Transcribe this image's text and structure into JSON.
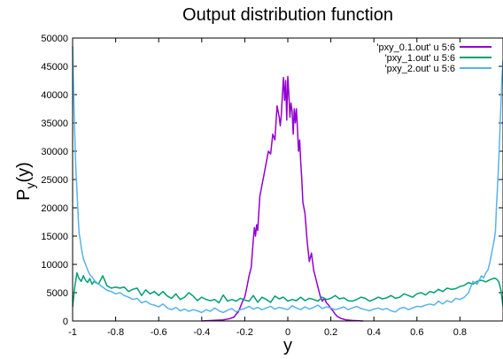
{
  "chart_data": {
    "type": "line",
    "title": "Output distribution function",
    "xlabel": "y",
    "ylabel_main": "P",
    "ylabel_sub": "y",
    "ylabel_tail": "(y)",
    "xlim": [
      -1,
      1
    ],
    "ylim": [
      0,
      50000
    ],
    "xticks": [
      -1,
      -0.8,
      -0.6,
      -0.4,
      -0.2,
      0,
      0.2,
      0.4,
      0.6,
      0.8
    ],
    "xtick_labels": [
      "-1",
      "-0.8",
      "-0.6",
      "-0.4",
      "-0.2",
      "0",
      "0.2",
      "0.4",
      "0.6",
      "0.8"
    ],
    "yticks": [
      0,
      5000,
      10000,
      15000,
      20000,
      25000,
      30000,
      35000,
      40000,
      45000,
      50000
    ],
    "ytick_labels": [
      "0",
      "5000",
      "10000",
      "15000",
      "20000",
      "25000",
      "30000",
      "35000",
      "40000",
      "45000",
      "50000"
    ],
    "grid": false,
    "legend_position": "top-right",
    "series": [
      {
        "name": "'pxy_0.1.out' u 5:6",
        "color": "#9400D3",
        "x": [
          -0.4,
          -0.35,
          -0.3,
          -0.27,
          -0.25,
          -0.24,
          -0.23,
          -0.22,
          -0.21,
          -0.2,
          -0.19,
          -0.18,
          -0.17,
          -0.16,
          -0.155,
          -0.15,
          -0.145,
          -0.14,
          -0.13,
          -0.12,
          -0.11,
          -0.1,
          -0.09,
          -0.08,
          -0.07,
          -0.06,
          -0.05,
          -0.045,
          -0.04,
          -0.035,
          -0.03,
          -0.025,
          -0.02,
          -0.015,
          -0.01,
          -0.005,
          0,
          0.005,
          0.01,
          0.015,
          0.02,
          0.025,
          0.03,
          0.035,
          0.04,
          0.045,
          0.05,
          0.055,
          0.06,
          0.065,
          0.07,
          0.08,
          0.09,
          0.1,
          0.11,
          0.12,
          0.13,
          0.14,
          0.15,
          0.16,
          0.17,
          0.18,
          0.19,
          0.2,
          0.21,
          0.22,
          0.23,
          0.24,
          0.25,
          0.27,
          0.3,
          0.33,
          0.35
        ],
        "y": [
          0,
          100,
          200,
          400,
          700,
          1200,
          1600,
          2500,
          3500,
          4200,
          6000,
          8000,
          9500,
          14500,
          16500,
          15000,
          17000,
          16000,
          22000,
          24000,
          26000,
          28000,
          30000,
          29500,
          33000,
          32000,
          38000,
          37000,
          36000,
          34500,
          36500,
          40000,
          43000,
          39000,
          42500,
          35500,
          43200,
          40000,
          36000,
          38500,
          37000,
          33000,
          37500,
          35000,
          37500,
          34000,
          30000,
          32000,
          28000,
          25000,
          21000,
          19000,
          14000,
          10500,
          12000,
          9000,
          7500,
          6000,
          4500,
          3500,
          4000,
          3200,
          2800,
          2200,
          1800,
          1200,
          800,
          600,
          400,
          200,
          100,
          50,
          0
        ]
      },
      {
        "name": "'pxy_1.out' u 5:6",
        "color": "#009E73",
        "x": [
          -1.0,
          -0.99,
          -0.98,
          -0.97,
          -0.96,
          -0.95,
          -0.94,
          -0.93,
          -0.92,
          -0.91,
          -0.9,
          -0.88,
          -0.86,
          -0.84,
          -0.82,
          -0.8,
          -0.78,
          -0.76,
          -0.74,
          -0.72,
          -0.7,
          -0.68,
          -0.66,
          -0.64,
          -0.62,
          -0.6,
          -0.58,
          -0.56,
          -0.54,
          -0.52,
          -0.5,
          -0.48,
          -0.46,
          -0.44,
          -0.42,
          -0.4,
          -0.38,
          -0.36,
          -0.34,
          -0.32,
          -0.3,
          -0.28,
          -0.26,
          -0.24,
          -0.22,
          -0.2,
          -0.18,
          -0.16,
          -0.14,
          -0.12,
          -0.1,
          -0.08,
          -0.06,
          -0.04,
          -0.02,
          0,
          0.02,
          0.04,
          0.06,
          0.08,
          0.1,
          0.12,
          0.14,
          0.16,
          0.18,
          0.2,
          0.22,
          0.24,
          0.26,
          0.28,
          0.3,
          0.32,
          0.34,
          0.36,
          0.38,
          0.4,
          0.42,
          0.44,
          0.46,
          0.48,
          0.5,
          0.52,
          0.54,
          0.56,
          0.58,
          0.6,
          0.62,
          0.64,
          0.66,
          0.68,
          0.7,
          0.72,
          0.74,
          0.76,
          0.78,
          0.8,
          0.82,
          0.84,
          0.86,
          0.88,
          0.9,
          0.92,
          0.94,
          0.96,
          0.97,
          0.98,
          0.99,
          1.0
        ],
        "y": [
          2500,
          6000,
          8500,
          7500,
          7000,
          8000,
          7200,
          6800,
          7500,
          6500,
          7000,
          6500,
          8000,
          6200,
          5800,
          6000,
          5800,
          6000,
          5200,
          5600,
          5800,
          4500,
          5500,
          4800,
          5200,
          4500,
          5200,
          4400,
          4000,
          4800,
          3800,
          4200,
          5000,
          4400,
          3600,
          4200,
          3800,
          3600,
          3800,
          3200,
          4600,
          3500,
          3800,
          3500,
          4000,
          3700,
          3500,
          4500,
          3300,
          4200,
          3800,
          3300,
          4400,
          3900,
          4200,
          3500,
          3800,
          3600,
          4200,
          3600,
          4000,
          3800,
          3500,
          4200,
          3800,
          4000,
          4500,
          3900,
          4100,
          3600,
          3500,
          3800,
          4200,
          4000,
          3500,
          3800,
          4200,
          3900,
          4100,
          4500,
          4000,
          4200,
          4800,
          4500,
          4200,
          4800,
          5000,
          4600,
          5200,
          5000,
          5600,
          5200,
          5800,
          5600,
          5700,
          6100,
          6300,
          6800,
          6500,
          7000,
          7200,
          6900,
          7300,
          7600,
          7400,
          7000,
          5500,
          2600
        ]
      },
      {
        "name": "'pxy_2.out' u 5:6",
        "color": "#56B4E9",
        "x": [
          -1.0,
          -0.995,
          -0.99,
          -0.985,
          -0.98,
          -0.975,
          -0.97,
          -0.965,
          -0.96,
          -0.955,
          -0.95,
          -0.94,
          -0.93,
          -0.92,
          -0.91,
          -0.9,
          -0.88,
          -0.86,
          -0.84,
          -0.82,
          -0.8,
          -0.78,
          -0.76,
          -0.74,
          -0.72,
          -0.7,
          -0.68,
          -0.66,
          -0.64,
          -0.62,
          -0.6,
          -0.58,
          -0.56,
          -0.54,
          -0.52,
          -0.5,
          -0.48,
          -0.46,
          -0.44,
          -0.42,
          -0.4,
          -0.38,
          -0.36,
          -0.34,
          -0.32,
          -0.3,
          -0.28,
          -0.26,
          -0.24,
          -0.22,
          -0.2,
          -0.18,
          -0.16,
          -0.14,
          -0.12,
          -0.1,
          -0.08,
          -0.06,
          -0.04,
          -0.02,
          0,
          0.02,
          0.04,
          0.06,
          0.08,
          0.1,
          0.12,
          0.14,
          0.16,
          0.18,
          0.2,
          0.22,
          0.24,
          0.26,
          0.28,
          0.3,
          0.32,
          0.34,
          0.36,
          0.38,
          0.4,
          0.42,
          0.44,
          0.46,
          0.48,
          0.5,
          0.52,
          0.54,
          0.56,
          0.58,
          0.6,
          0.62,
          0.64,
          0.66,
          0.68,
          0.7,
          0.72,
          0.74,
          0.76,
          0.78,
          0.8,
          0.82,
          0.84,
          0.86,
          0.88,
          0.9,
          0.91,
          0.92,
          0.93,
          0.94,
          0.95,
          0.955,
          0.96,
          0.965,
          0.97,
          0.975,
          0.98,
          0.985,
          0.99,
          0.995,
          1.0
        ],
        "y": [
          48500,
          40000,
          33000,
          27000,
          23000,
          19000,
          15500,
          14500,
          13000,
          12000,
          11000,
          10000,
          9000,
          8200,
          7800,
          7200,
          6500,
          6000,
          5400,
          5200,
          4800,
          5000,
          4500,
          4200,
          3800,
          4000,
          3200,
          3500,
          3000,
          2800,
          2500,
          3000,
          2300,
          2000,
          2400,
          1800,
          2100,
          1700,
          2000,
          1800,
          1500,
          2000,
          1700,
          2300,
          1800,
          1500,
          1900,
          2200,
          1600,
          2000,
          2200,
          2600,
          2100,
          2400,
          2000,
          2300,
          2600,
          2100,
          2400,
          2200,
          2000,
          2700,
          2300,
          2000,
          2500,
          2100,
          2400,
          2800,
          2200,
          2500,
          2300,
          2000,
          2200,
          2500,
          2000,
          2300,
          2600,
          2200,
          2000,
          1800,
          2100,
          2300,
          2000,
          2200,
          1800,
          1600,
          2200,
          2400,
          2000,
          2300,
          2600,
          2500,
          2800,
          3000,
          2800,
          3500,
          3000,
          3600,
          3300,
          4000,
          3800,
          4200,
          5000,
          7000,
          6500,
          8000,
          7600,
          8500,
          9000,
          10500,
          12500,
          13500,
          14500,
          16000,
          20500,
          24000,
          28000,
          33000,
          38000,
          43000,
          46000
        ]
      }
    ]
  }
}
